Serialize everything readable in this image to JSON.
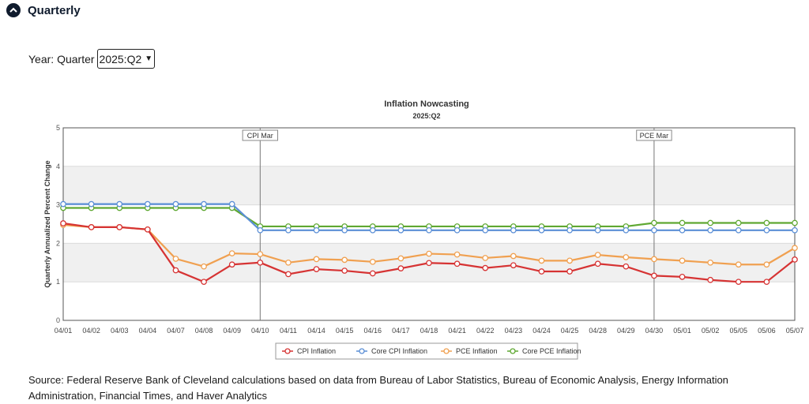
{
  "section": {
    "title": "Quarterly",
    "toggle_icon": "chevron-up-icon"
  },
  "year_select": {
    "label": "Year: Quarter",
    "value": "2025:Q2"
  },
  "chart_data": {
    "type": "line",
    "title": "Inflation Nowcasting",
    "subtitle": "2025:Q2",
    "ylabel": "Quarterly Annualized Percent Change",
    "xlabel": "",
    "ylim": [
      0,
      5
    ],
    "yticks": [
      0,
      1,
      2,
      3,
      4,
      5
    ],
    "grid": true,
    "legend_position": "bottom",
    "categories": [
      "04/01",
      "04/02",
      "04/03",
      "04/04",
      "04/07",
      "04/08",
      "04/09",
      "04/10",
      "04/11",
      "04/14",
      "04/15",
      "04/16",
      "04/17",
      "04/18",
      "04/21",
      "04/22",
      "04/23",
      "04/24",
      "04/25",
      "04/28",
      "04/29",
      "04/30",
      "05/01",
      "05/02",
      "05/05",
      "05/06",
      "05/07"
    ],
    "annotations": [
      {
        "category": "04/10",
        "label": "CPI Mar"
      },
      {
        "category": "04/30",
        "label": "PCE Mar"
      }
    ],
    "series": [
      {
        "name": "CPI Inflation",
        "color": "#d63333",
        "values": [
          2.52,
          2.42,
          2.42,
          2.36,
          1.3,
          1.0,
          1.45,
          1.5,
          1.2,
          1.33,
          1.29,
          1.22,
          1.35,
          1.49,
          1.47,
          1.36,
          1.43,
          1.27,
          1.27,
          1.47,
          1.4,
          1.16,
          1.13,
          1.05,
          1.0,
          1.0,
          1.58
        ]
      },
      {
        "name": "Core CPI Inflation",
        "color": "#5b8fd6",
        "values": [
          3.02,
          3.02,
          3.02,
          3.02,
          3.02,
          3.02,
          3.02,
          2.34,
          2.34,
          2.34,
          2.34,
          2.34,
          2.34,
          2.34,
          2.34,
          2.34,
          2.34,
          2.34,
          2.34,
          2.34,
          2.34,
          2.34,
          2.34,
          2.34,
          2.34,
          2.34,
          2.34
        ]
      },
      {
        "name": "PCE Inflation",
        "color": "#f0a050",
        "values": [
          2.48,
          2.42,
          2.42,
          2.36,
          1.6,
          1.4,
          1.74,
          1.72,
          1.5,
          1.59,
          1.57,
          1.52,
          1.61,
          1.73,
          1.71,
          1.62,
          1.67,
          1.55,
          1.55,
          1.7,
          1.64,
          1.59,
          1.55,
          1.5,
          1.45,
          1.45,
          1.88
        ]
      },
      {
        "name": "Core PCE Inflation",
        "color": "#5fa832",
        "values": [
          2.92,
          2.92,
          2.92,
          2.92,
          2.92,
          2.92,
          2.92,
          2.44,
          2.44,
          2.44,
          2.44,
          2.44,
          2.44,
          2.44,
          2.44,
          2.44,
          2.44,
          2.44,
          2.44,
          2.44,
          2.44,
          2.53,
          2.53,
          2.53,
          2.53,
          2.53,
          2.53
        ]
      }
    ]
  },
  "source_text": "Source: Federal Reserve Bank of Cleveland calculations based on data from Bureau of Labor Statistics, Bureau of Economic Analysis, Energy Information Administration, Financial Times, and Haver Analytics"
}
